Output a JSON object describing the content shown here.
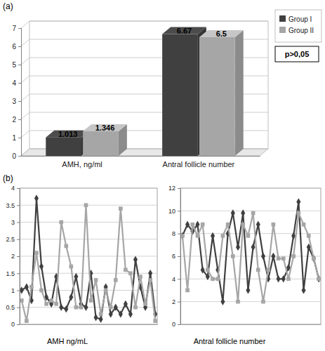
{
  "chart_data": [
    {
      "type": "bar",
      "title": "(a)",
      "categories": [
        "AMH, ng/ml",
        "Antral follicle number"
      ],
      "series": [
        {
          "name": "Group I",
          "color": "#404040",
          "values": [
            1.013,
            6.67
          ]
        },
        {
          "name": "Group II",
          "color": "#a6a6a6",
          "values": [
            1.346,
            6.5
          ]
        }
      ],
      "ylim": [
        0,
        7
      ],
      "yticks": [
        0,
        1,
        2,
        3,
        4,
        5,
        6,
        7
      ],
      "grid": true,
      "legend": "top-right",
      "data_labels": true,
      "annotations": [
        "p>0,05"
      ]
    },
    {
      "type": "line",
      "title": "(b)",
      "x_label": "AMH ng/mL",
      "categories": [
        null,
        null,
        null,
        null,
        null,
        null,
        null,
        null,
        null,
        null,
        null,
        null,
        null,
        null,
        null,
        null,
        null,
        null,
        null,
        null,
        null,
        null,
        null,
        null,
        null,
        null,
        null,
        null
      ],
      "series": [
        {
          "color": "#404040",
          "marker": "diamond",
          "values": [
            1.0,
            1.1,
            0.7,
            3.7,
            1.7,
            0.8,
            0.6,
            1.4,
            0.5,
            0.45,
            0.8,
            1.4,
            0.6,
            0.5,
            1.5,
            0.2,
            0.15,
            1.1,
            0.3,
            0.5,
            0.3,
            0.6,
            0.3,
            1.9,
            1.1,
            0.5,
            1.5,
            0.3
          ]
        },
        {
          "color": "#a6a6a6",
          "marker": "square",
          "values": [
            0.7,
            0.1,
            1.1,
            2.1,
            1.0,
            0.6,
            0.7,
            0.6,
            3.0,
            2.3,
            1.7,
            0.5,
            0.5,
            3.5,
            0.7,
            1.3,
            0.3,
            1.0,
            0.5,
            1.3,
            3.4,
            1.6,
            1.5,
            0.5,
            1.4,
            0.6,
            1.3,
            0.1
          ]
        }
      ],
      "ylim": [
        0,
        4
      ],
      "yticks": [
        0,
        0.5,
        1,
        1.5,
        2,
        2.5,
        3,
        3.5,
        4
      ],
      "grid": true,
      "tick_labels": "y"
    },
    {
      "type": "line",
      "x_label": "Antral follicle number",
      "categories": [
        null,
        null,
        null,
        null,
        null,
        null,
        null,
        null,
        null,
        null,
        null,
        null,
        null,
        null,
        null,
        null,
        null,
        null,
        null,
        null,
        null,
        null,
        null,
        null,
        null,
        null,
        null,
        null
      ],
      "series": [
        {
          "color": "#404040",
          "marker": "diamond",
          "values": [
            7.8,
            8.8,
            8.2,
            8.8,
            4.8,
            4.2,
            7.8,
            4.8,
            2,
            8,
            9.8,
            6.8,
            9.8,
            3,
            6.8,
            8.8,
            6,
            4,
            6,
            4,
            4,
            5,
            7.8,
            10.8,
            3,
            6.8,
            5.8,
            4
          ]
        },
        {
          "color": "#a6a6a6",
          "marker": "square",
          "values": [
            7.8,
            3,
            8.8,
            7.8,
            8.8,
            4.8,
            4,
            4,
            7.8,
            8.8,
            6,
            2,
            8.8,
            7.8,
            9.8,
            4.8,
            2,
            4.8,
            8.8,
            5.8,
            5.8,
            4,
            6,
            9.8,
            8.8,
            7.8,
            5.8,
            4
          ]
        }
      ],
      "ylim": [
        0,
        12
      ],
      "yticks": [
        0,
        2,
        4,
        6,
        8,
        10,
        12
      ],
      "grid": true,
      "tick_labels": "y"
    }
  ]
}
